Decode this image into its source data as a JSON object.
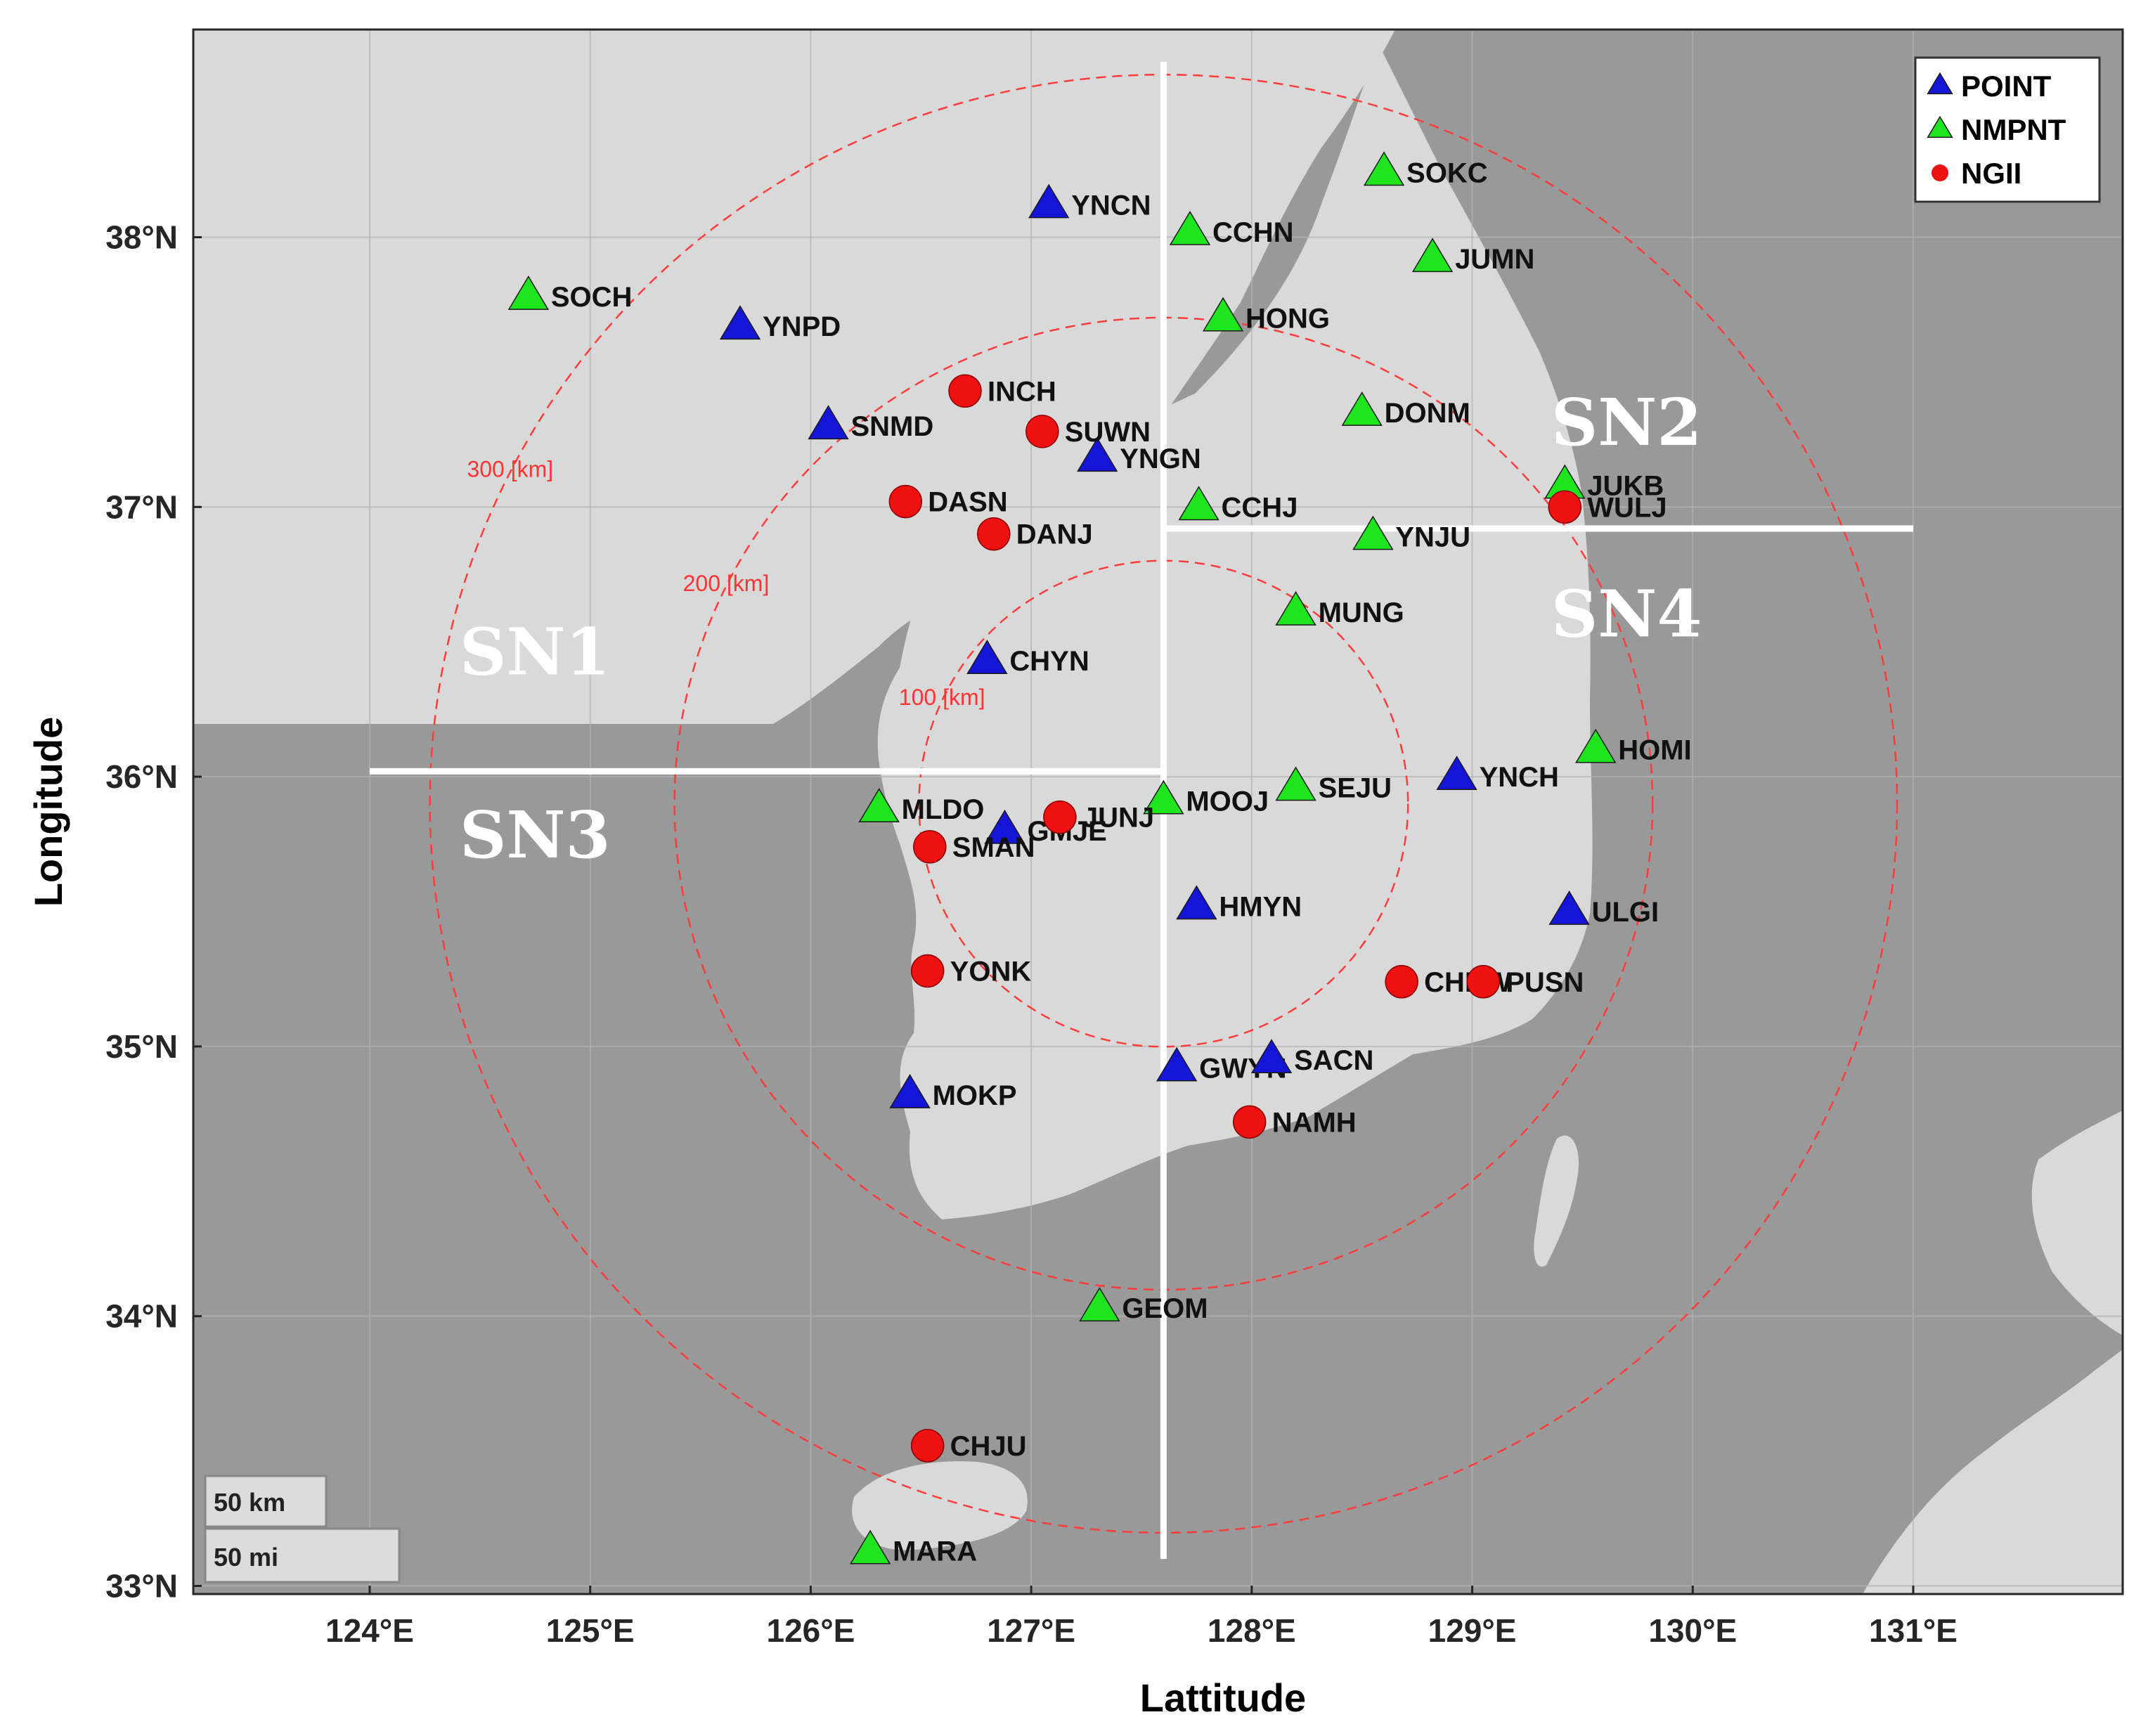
{
  "axes": {
    "xlabel": "Lattitude",
    "ylabel": "Longitude",
    "x_ticks": [
      {
        "value": 124,
        "label": "124°E"
      },
      {
        "value": 125,
        "label": "125°E"
      },
      {
        "value": 126,
        "label": "126°E"
      },
      {
        "value": 127,
        "label": "127°E"
      },
      {
        "value": 128,
        "label": "128°E"
      },
      {
        "value": 129,
        "label": "129°E"
      },
      {
        "value": 130,
        "label": "130°E"
      },
      {
        "value": 131,
        "label": "131°E"
      }
    ],
    "y_ticks": [
      {
        "value": 33,
        "label": "33°N"
      },
      {
        "value": 34,
        "label": "34°N"
      },
      {
        "value": 35,
        "label": "35°N"
      },
      {
        "value": 36,
        "label": "36°N"
      },
      {
        "value": 37,
        "label": "37°N"
      },
      {
        "value": 38,
        "label": "38°N"
      }
    ],
    "xlim": [
      123.2,
      131.95
    ],
    "ylim": [
      32.97,
      38.77
    ]
  },
  "legend": {
    "placement": "top-right",
    "entries": [
      {
        "key": "POINT",
        "label": "POINT",
        "marker": "triangle",
        "color": "#1515d8"
      },
      {
        "key": "NMPNT",
        "label": "NMPNT",
        "marker": "triangle",
        "color": "#1ee51e"
      },
      {
        "key": "NGII",
        "label": "NGII",
        "marker": "circle",
        "color": "#ee1111"
      }
    ]
  },
  "center": {
    "lon": 127.6,
    "lat": 35.9
  },
  "rings": [
    {
      "radius_km": 100,
      "label": "100 [km]"
    },
    {
      "radius_km": 200,
      "label": "200 [km]"
    },
    {
      "radius_km": 300,
      "label": "300 [km]"
    }
  ],
  "sectors": [
    {
      "label": "SN1"
    },
    {
      "label": "SN2"
    },
    {
      "label": "SN3"
    },
    {
      "label": "SN4"
    }
  ],
  "dividers": {
    "vertical_lon": 127.6,
    "left_lat": 36.02,
    "right_lat": 36.92
  },
  "scale_bar": {
    "km_label": "50 km",
    "mi_label": "50 mi"
  },
  "colors": {
    "sea": "#999999",
    "land": "#d9d9d9",
    "grid": "#b3b3b3",
    "rings": "#ff3c3c",
    "divider": "#ffffff"
  },
  "stations": [
    {
      "name": "YNCN",
      "lon": 127.08,
      "lat": 38.12,
      "type": "POINT"
    },
    {
      "name": "YNPD",
      "lon": 125.68,
      "lat": 37.67,
      "type": "POINT"
    },
    {
      "name": "SNMD",
      "lon": 126.08,
      "lat": 37.3,
      "type": "POINT"
    },
    {
      "name": "YNGN",
      "lon": 127.3,
      "lat": 37.18,
      "type": "POINT"
    },
    {
      "name": "CHYN",
      "lon": 126.8,
      "lat": 36.43,
      "type": "POINT"
    },
    {
      "name": "GMJE",
      "lon": 126.88,
      "lat": 35.8,
      "type": "POINT"
    },
    {
      "name": "HMYN",
      "lon": 127.75,
      "lat": 35.52,
      "type": "POINT"
    },
    {
      "name": "YNCH",
      "lon": 128.93,
      "lat": 36.0,
      "type": "POINT"
    },
    {
      "name": "ULGI",
      "lon": 129.44,
      "lat": 35.5,
      "type": "POINT"
    },
    {
      "name": "MOKP",
      "lon": 126.45,
      "lat": 34.82,
      "type": "POINT"
    },
    {
      "name": "GWYN",
      "lon": 127.66,
      "lat": 34.92,
      "type": "POINT"
    },
    {
      "name": "SACN",
      "lon": 128.09,
      "lat": 34.95,
      "type": "POINT"
    },
    {
      "name": "SOKC",
      "lon": 128.6,
      "lat": 38.24,
      "type": "NMPNT"
    },
    {
      "name": "CCHN",
      "lon": 127.72,
      "lat": 38.02,
      "type": "NMPNT"
    },
    {
      "name": "JUMN",
      "lon": 128.82,
      "lat": 37.92,
      "type": "NMPNT"
    },
    {
      "name": "SOCH",
      "lon": 124.72,
      "lat": 37.78,
      "type": "NMPNT"
    },
    {
      "name": "HONG",
      "lon": 127.87,
      "lat": 37.7,
      "type": "NMPNT"
    },
    {
      "name": "DONM",
      "lon": 128.5,
      "lat": 37.35,
      "type": "NMPNT"
    },
    {
      "name": "JUKB",
      "lon": 129.42,
      "lat": 37.08,
      "type": "NMPNT"
    },
    {
      "name": "CCHJ",
      "lon": 127.76,
      "lat": 37.0,
      "type": "NMPNT"
    },
    {
      "name": "YNJU",
      "lon": 128.55,
      "lat": 36.89,
      "type": "NMPNT"
    },
    {
      "name": "MUNG",
      "lon": 128.2,
      "lat": 36.61,
      "type": "NMPNT"
    },
    {
      "name": "HOMI",
      "lon": 129.56,
      "lat": 36.1,
      "type": "NMPNT"
    },
    {
      "name": "SEJU",
      "lon": 128.2,
      "lat": 35.96,
      "type": "NMPNT"
    },
    {
      "name": "MOOJ",
      "lon": 127.6,
      "lat": 35.91,
      "type": "NMPNT"
    },
    {
      "name": "MLDO",
      "lon": 126.31,
      "lat": 35.88,
      "type": "NMPNT"
    },
    {
      "name": "GEOM",
      "lon": 127.31,
      "lat": 34.03,
      "type": "NMPNT"
    },
    {
      "name": "MARA",
      "lon": 126.27,
      "lat": 33.13,
      "type": "NMPNT"
    },
    {
      "name": "INCH",
      "lon": 126.7,
      "lat": 37.43,
      "type": "NGII"
    },
    {
      "name": "SUWN",
      "lon": 127.05,
      "lat": 37.28,
      "type": "NGII"
    },
    {
      "name": "DASN",
      "lon": 126.43,
      "lat": 37.02,
      "type": "NGII"
    },
    {
      "name": "DANJ",
      "lon": 126.83,
      "lat": 36.9,
      "type": "NGII"
    },
    {
      "name": "WULJ",
      "lon": 129.42,
      "lat": 37.0,
      "type": "NGII"
    },
    {
      "name": "JUNJ",
      "lon": 127.13,
      "lat": 35.85,
      "type": "NGII"
    },
    {
      "name": "SMAN",
      "lon": 126.54,
      "lat": 35.74,
      "type": "NGII"
    },
    {
      "name": "YONK",
      "lon": 126.53,
      "lat": 35.28,
      "type": "NGII"
    },
    {
      "name": "CHNW",
      "lon": 128.68,
      "lat": 35.24,
      "type": "NGII"
    },
    {
      "name": "PUSN",
      "lon": 129.05,
      "lat": 35.24,
      "type": "NGII"
    },
    {
      "name": "NAMH",
      "lon": 127.99,
      "lat": 34.72,
      "type": "NGII"
    },
    {
      "name": "CHJU",
      "lon": 126.53,
      "lat": 33.52,
      "type": "NGII"
    }
  ]
}
